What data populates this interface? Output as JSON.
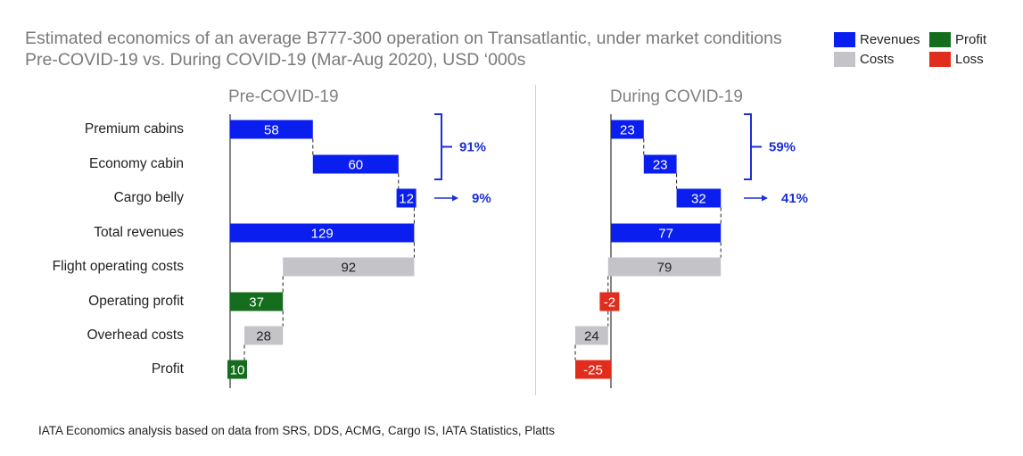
{
  "chart_data": {
    "type": "waterfall",
    "title": "Estimated economics of an average B777-300 operation on Transatlantic, under market conditions Pre-COVID-19 vs. During COVID-19 (Mar-Aug 2020), USD ‘000s",
    "categories": [
      "Premium cabins",
      "Economy cabin",
      "Cargo belly",
      "Total revenues",
      "Flight operating costs",
      "Operating profit",
      "Overhead costs",
      "Profit"
    ],
    "legend": [
      {
        "label": "Revenues",
        "color": "#0a1ef0"
      },
      {
        "label": "Profit",
        "color": "#146e1e"
      },
      {
        "label": "Costs",
        "color": "#c4c4c8"
      },
      {
        "label": "Loss",
        "color": "#e02d1e"
      }
    ],
    "legend_position": "top-right",
    "panels": [
      {
        "name": "Pre-COVID-19",
        "bars": [
          {
            "label": "58",
            "value": 58,
            "start": 0,
            "end": 58,
            "kind": "Revenues"
          },
          {
            "label": "60",
            "value": 60,
            "start": 58,
            "end": 118,
            "kind": "Revenues"
          },
          {
            "label": "12",
            "value": 12,
            "start": 118,
            "end": 129,
            "kind": "Revenues"
          },
          {
            "label": "129",
            "value": 129,
            "start": 0,
            "end": 129,
            "kind": "Revenues"
          },
          {
            "label": "92",
            "value": 92,
            "start": 37,
            "end": 129,
            "kind": "Costs"
          },
          {
            "label": "37",
            "value": 37,
            "start": 0,
            "end": 37,
            "kind": "Profit"
          },
          {
            "label": "28",
            "value": 28,
            "start": 10,
            "end": 37,
            "kind": "Costs"
          },
          {
            "label": "10",
            "value": 10,
            "start": 0,
            "end": 10,
            "kind": "Profit"
          }
        ],
        "annotations": [
          {
            "text": "91%",
            "type": "brace",
            "rows": [
              0,
              1
            ]
          },
          {
            "text": "9%",
            "type": "arrow",
            "rows": [
              2
            ]
          }
        ]
      },
      {
        "name": "During COVID-19",
        "bars": [
          {
            "label": "23",
            "value": 23,
            "start": 0,
            "end": 23,
            "kind": "Revenues"
          },
          {
            "label": "23",
            "value": 23,
            "start": 23,
            "end": 46,
            "kind": "Revenues"
          },
          {
            "label": "32",
            "value": 32,
            "start": 46,
            "end": 77,
            "kind": "Revenues"
          },
          {
            "label": "77",
            "value": 77,
            "start": 0,
            "end": 77,
            "kind": "Revenues"
          },
          {
            "label": "79",
            "value": 79,
            "start": -2,
            "end": 77,
            "kind": "Costs"
          },
          {
            "label": "-2",
            "value": -2,
            "start": -2,
            "end": 0,
            "kind": "Loss"
          },
          {
            "label": "24",
            "value": 24,
            "start": -25,
            "end": -2,
            "kind": "Costs"
          },
          {
            "label": "-25",
            "value": -25,
            "start": -25,
            "end": 0,
            "kind": "Loss"
          }
        ],
        "annotations": [
          {
            "text": "59%",
            "type": "brace",
            "rows": [
              0,
              1
            ]
          },
          {
            "text": "41%",
            "type": "arrow",
            "rows": [
              2
            ]
          }
        ]
      }
    ],
    "source": "IATA Economics analysis based on data from SRS, DDS, ACMG, Cargo IS, IATA Statistics, Platts"
  }
}
